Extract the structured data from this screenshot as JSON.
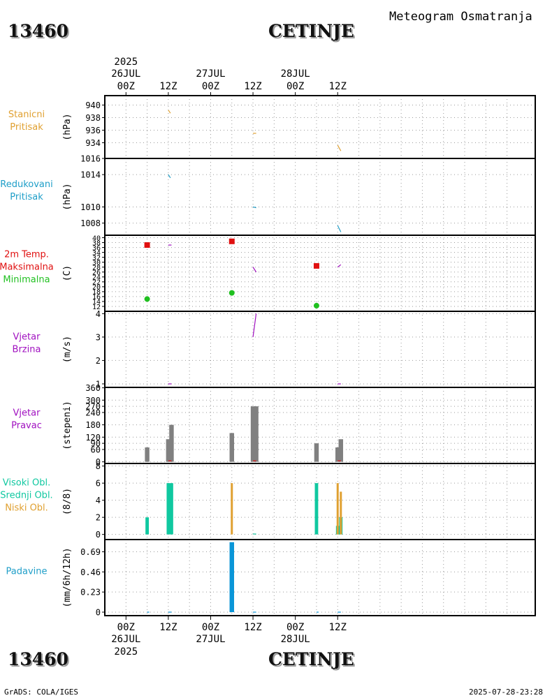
{
  "header": {
    "station_id": "13460",
    "station_name": "CETINJE",
    "title": "Meteogram Osmatranja"
  },
  "footer": {
    "station_id": "13460",
    "station_name": "CETINJE",
    "credit": "GrADS: COLA/IGES",
    "timestamp": "2025-07-28-23:28"
  },
  "colors": {
    "pressure": "#e0a030",
    "reduced": "#1e9ec8",
    "tmax": "#e01010",
    "tmin": "#20c020",
    "wind": "#a010c0",
    "direction_bar": "#808080",
    "high_cloud": "#10c8a0",
    "low_cloud": "#e0a030",
    "precip": "#0a96d8"
  },
  "chart_data": {
    "type": "meteogram",
    "time_axis": {
      "unit": "hours since 2025-07-26 00Z",
      "range": [
        -6,
        116
      ],
      "major_ticks": [
        {
          "hour": 0,
          "label": "00Z",
          "date": "26JUL",
          "year": "2025"
        },
        {
          "hour": 12,
          "label": "12Z"
        },
        {
          "hour": 24,
          "label": "00Z",
          "date": "27JUL"
        },
        {
          "hour": 36,
          "label": "12Z"
        },
        {
          "hour": 48,
          "label": "00Z",
          "date": "28JUL"
        },
        {
          "hour": 60,
          "label": "12Z"
        }
      ]
    },
    "panels": [
      {
        "id": "station_pressure",
        "label_lines": [
          "Stanicni",
          "Pritisak"
        ],
        "label_colors": [
          "#e0a030",
          "#e0a030"
        ],
        "unit": "(hPa)",
        "ylim": [
          931.5,
          941.5
        ],
        "ticks": [
          940,
          938,
          936,
          934
        ],
        "traces": [
          {
            "kind": "segment",
            "color": "#e0a030",
            "points": [
              [
                12.0,
                939.2
              ],
              [
                12.6,
                938.7
              ]
            ]
          },
          {
            "kind": "segment",
            "color": "#e0a030",
            "points": [
              [
                36.0,
                935.5
              ],
              [
                36.9,
                935.5
              ]
            ]
          },
          {
            "kind": "segment",
            "color": "#e0a030",
            "points": [
              [
                60.0,
                933.6
              ],
              [
                60.9,
                932.7
              ]
            ]
          }
        ]
      },
      {
        "id": "reduced_pressure",
        "label_lines": [
          "Redukovani",
          "Pritisak"
        ],
        "label_colors": [
          "#1e9ec8",
          "#1e9ec8"
        ],
        "unit": "(hPa)",
        "ylim": [
          1006.5,
          1016.0
        ],
        "ticks": [
          1016,
          1014,
          1010,
          1008
        ],
        "traces": [
          {
            "kind": "segment",
            "color": "#1e9ec8",
            "points": [
              [
                12.0,
                1014.0
              ],
              [
                12.6,
                1013.6
              ]
            ]
          },
          {
            "kind": "segment",
            "color": "#1e9ec8",
            "points": [
              [
                36.0,
                1010.0
              ],
              [
                36.9,
                1009.9
              ]
            ]
          },
          {
            "kind": "segment",
            "color": "#1e9ec8",
            "points": [
              [
                60.0,
                1007.7
              ],
              [
                60.9,
                1006.9
              ]
            ]
          }
        ]
      },
      {
        "id": "temperature",
        "label_lines": [
          "2m Temp.",
          "Maksimalna",
          "Minimalna"
        ],
        "label_colors": [
          "#e01010",
          "#e01010",
          "#20c020"
        ],
        "unit": "(C)",
        "ylim": [
          10,
          41
        ],
        "ticks": [
          40,
          38,
          36,
          34,
          32,
          30,
          28,
          26,
          24,
          22,
          20,
          18,
          16,
          14,
          12
        ],
        "grid_every": 2,
        "traces": [
          {
            "kind": "segment",
            "color": "#a010c0",
            "points": [
              [
                12.0,
                37.0
              ],
              [
                12.9,
                37.0
              ]
            ]
          },
          {
            "kind": "segment",
            "color": "#a010c0",
            "points": [
              [
                36.0,
                28.0
              ],
              [
                36.9,
                26.0
              ]
            ]
          },
          {
            "kind": "segment",
            "color": "#a010c0",
            "points": [
              [
                60.0,
                28.0
              ],
              [
                60.9,
                29.0
              ]
            ]
          },
          {
            "kind": "max_square",
            "color": "#e01010",
            "points": [
              [
                6.0,
                37.0
              ],
              [
                30.0,
                38.5
              ],
              [
                54.0,
                28.5
              ]
            ]
          },
          {
            "kind": "min_circle",
            "color": "#20c020",
            "points": [
              [
                6.0,
                15.0
              ],
              [
                30.0,
                17.5
              ],
              [
                54.0,
                12.3
              ]
            ]
          }
        ]
      },
      {
        "id": "wind_speed",
        "label_lines": [
          "Vjetar",
          "Brzina"
        ],
        "label_colors": [
          "#a010c0",
          "#a010c0"
        ],
        "unit": "(m/s)",
        "ylim": [
          0.85,
          4.1
        ],
        "ticks": [
          4,
          3,
          2,
          1
        ],
        "traces": [
          {
            "kind": "segment",
            "color": "#a010c0",
            "points": [
              [
                12.0,
                1.0
              ],
              [
                12.9,
                1.0
              ]
            ]
          },
          {
            "kind": "segment",
            "color": "#a010c0",
            "points": [
              [
                36.0,
                3.0
              ],
              [
                36.9,
                4.0
              ]
            ]
          },
          {
            "kind": "segment",
            "color": "#a010c0",
            "points": [
              [
                60.0,
                1.0
              ],
              [
                60.9,
                1.0
              ]
            ]
          }
        ]
      },
      {
        "id": "wind_direction",
        "label_lines": [
          "Vjetar",
          "Pravac"
        ],
        "label_colors": [
          "#a010c0",
          "#a010c0"
        ],
        "unit": "(stepeni)",
        "ylim": [
          -8,
          362
        ],
        "ticks": [
          360,
          300,
          270,
          240,
          180,
          120,
          90,
          60,
          0
        ],
        "traces": [
          {
            "kind": "bars",
            "color": "#808080",
            "width_h": 0.8,
            "points": [
              [
                6.0,
                70
              ],
              [
                12.0,
                110
              ],
              [
                12.9,
                180
              ],
              [
                30.0,
                140
              ],
              [
                36.0,
                270
              ],
              [
                36.9,
                270
              ],
              [
                54.0,
                90
              ],
              [
                60.0,
                70
              ],
              [
                60.9,
                110
              ]
            ]
          },
          {
            "kind": "segment",
            "color": "#e01010",
            "points": [
              [
                12.0,
                5
              ],
              [
                12.9,
                5
              ]
            ]
          },
          {
            "kind": "segment",
            "color": "#e01010",
            "points": [
              [
                36.0,
                5
              ],
              [
                36.9,
                5
              ]
            ]
          },
          {
            "kind": "segment",
            "color": "#e01010",
            "points": [
              [
                60.0,
                5
              ],
              [
                60.9,
                5
              ]
            ]
          }
        ]
      },
      {
        "id": "cloud_cover",
        "label_lines": [
          "Visoki Obl.",
          "Srednji Obl.",
          "Niski Obl."
        ],
        "label_colors": [
          "#10c8a0",
          "#10c8a0",
          "#e0a030"
        ],
        "unit": "(8/8)",
        "ylim": [
          -0.6,
          8.3
        ],
        "ticks": [
          8,
          6,
          4,
          2,
          0
        ],
        "traces": [
          {
            "kind": "bars",
            "color": "#10c8a0",
            "width_h": 0.6,
            "points": [
              [
                6.0,
                2
              ],
              [
                12.0,
                6
              ],
              [
                12.9,
                6
              ],
              [
                54.0,
                6
              ],
              [
                60.0,
                1
              ],
              [
                60.9,
                2
              ]
            ]
          },
          {
            "kind": "bars",
            "color": "#e0a030",
            "width_h": 0.3,
            "points": [
              [
                30.0,
                6
              ],
              [
                60.0,
                6
              ],
              [
                60.9,
                5
              ]
            ]
          },
          {
            "kind": "segment",
            "color": "#10c8a0",
            "points": [
              [
                36.0,
                0.05
              ],
              [
                36.9,
                0.05
              ]
            ]
          }
        ]
      },
      {
        "id": "precipitation",
        "label_lines": [
          "Padavine"
        ],
        "label_colors": [
          "#1e9ec8"
        ],
        "unit": "(mm/6h/12h)",
        "ylim": [
          -0.04,
          0.83
        ],
        "ticks": [
          0.69,
          0.46,
          0.23,
          0
        ],
        "traces": [
          {
            "kind": "bars",
            "color": "#0a96d8",
            "width_h": 0.8,
            "points": [
              [
                30.0,
                0.8
              ]
            ]
          },
          {
            "kind": "segment",
            "color": "#0a96d8",
            "points": [
              [
                6.0,
                0.0
              ],
              [
                6.6,
                0.0
              ]
            ]
          },
          {
            "kind": "segment",
            "color": "#0a96d8",
            "points": [
              [
                12.0,
                0.0
              ],
              [
                12.9,
                0.0
              ]
            ]
          },
          {
            "kind": "segment",
            "color": "#0a96d8",
            "points": [
              [
                36.0,
                0.0
              ],
              [
                36.9,
                0.0
              ]
            ]
          },
          {
            "kind": "segment",
            "color": "#0a96d8",
            "points": [
              [
                54.0,
                0.0
              ],
              [
                54.6,
                0.0
              ]
            ]
          },
          {
            "kind": "segment",
            "color": "#0a96d8",
            "points": [
              [
                60.0,
                0.0
              ],
              [
                60.9,
                0.0
              ]
            ]
          }
        ]
      }
    ]
  }
}
